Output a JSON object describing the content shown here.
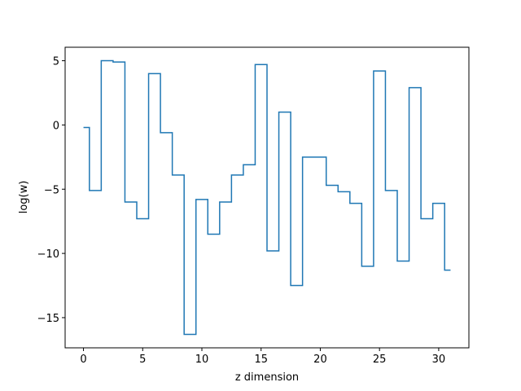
{
  "chart_data": {
    "type": "line",
    "drawstyle": "steps-mid",
    "title": "",
    "xlabel": "z dimension",
    "ylabel": "log(w)",
    "xlim": [
      -1.55,
      32.55
    ],
    "ylim": [
      -17.35,
      6.05
    ],
    "x_ticks": [
      0,
      5,
      10,
      15,
      20,
      25,
      30
    ],
    "x_tick_labels": [
      "0",
      "5",
      "10",
      "15",
      "20",
      "25",
      "30"
    ],
    "y_ticks": [
      5,
      0,
      -5,
      -10,
      -15
    ],
    "y_tick_labels": [
      "5",
      "0",
      "−5",
      "−10",
      "−15"
    ],
    "grid": false,
    "series": [
      {
        "color": "#1f77b4",
        "x": [
          0,
          1,
          2,
          3,
          4,
          5,
          6,
          7,
          8,
          9,
          10,
          11,
          12,
          13,
          14,
          15,
          16,
          17,
          18,
          19,
          20,
          21,
          22,
          23,
          24,
          25,
          26,
          27,
          28,
          29,
          30,
          31
        ],
        "y": [
          -0.2,
          -5.1,
          5.0,
          4.9,
          -6.0,
          -7.3,
          4.0,
          -0.6,
          -3.9,
          -16.3,
          -5.8,
          -8.5,
          -6.0,
          -3.9,
          -3.1,
          4.7,
          -9.8,
          1.0,
          -12.5,
          -2.5,
          -2.5,
          -4.7,
          -5.2,
          -6.1,
          -11.0,
          4.2,
          -5.1,
          -10.6,
          2.9,
          -7.3,
          -6.1,
          -11.3
        ]
      }
    ]
  }
}
